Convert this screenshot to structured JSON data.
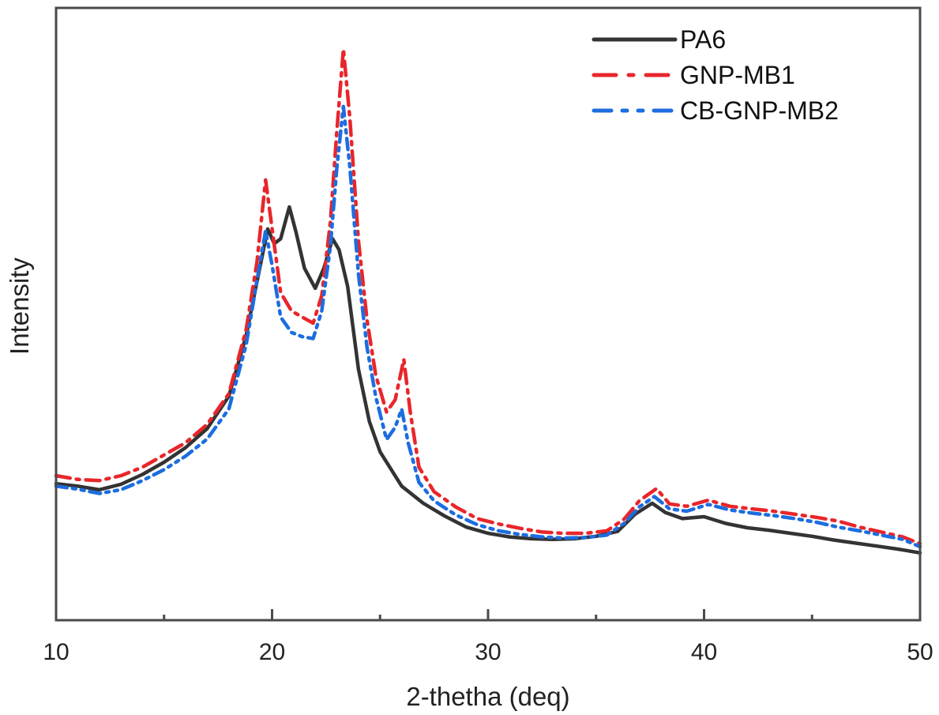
{
  "chart_data": {
    "type": "line",
    "title": "",
    "xlabel": "2-thetha (deq)",
    "ylabel": "Intensity",
    "xlim": [
      10,
      50
    ],
    "ylim": [
      0,
      100
    ],
    "x_ticks": [
      10,
      20,
      30,
      40,
      50
    ],
    "x_tick_labels": [
      "10",
      "20",
      "30",
      "40",
      "50"
    ],
    "x_minor_ticks": [
      15,
      25,
      35,
      45
    ],
    "y_ticks": [],
    "y_units": "arbitrary",
    "grid": false,
    "legend": {
      "placement": "top-right",
      "frame": false
    },
    "series": [
      {
        "name": "PA6",
        "color": "#333333",
        "style": "solid",
        "points": [
          [
            10,
            22.3
          ],
          [
            11,
            21.9
          ],
          [
            12,
            21.3
          ],
          [
            13,
            22.2
          ],
          [
            14,
            23.8
          ],
          [
            15,
            25.8
          ],
          [
            16,
            28.2
          ],
          [
            17,
            31.3
          ],
          [
            18,
            36.6
          ],
          [
            18.8,
            46.5
          ],
          [
            19.4,
            57.0
          ],
          [
            19.8,
            63.9
          ],
          [
            20.1,
            61.5
          ],
          [
            20.4,
            62.3
          ],
          [
            20.8,
            67.5
          ],
          [
            21.1,
            63.5
          ],
          [
            21.5,
            57.5
          ],
          [
            22.0,
            54.2
          ],
          [
            22.4,
            57.5
          ],
          [
            22.8,
            62.3
          ],
          [
            23.1,
            60.5
          ],
          [
            23.5,
            54.5
          ],
          [
            24.0,
            41.0
          ],
          [
            24.5,
            32.5
          ],
          [
            25.0,
            27.5
          ],
          [
            26.0,
            21.9
          ],
          [
            27.0,
            19.1
          ],
          [
            28.0,
            17.0
          ],
          [
            29.0,
            15.2
          ],
          [
            30.0,
            14.2
          ],
          [
            31.0,
            13.6
          ],
          [
            32.0,
            13.3
          ],
          [
            33.0,
            13.2
          ],
          [
            34.0,
            13.3
          ],
          [
            35.0,
            13.7
          ],
          [
            36.0,
            14.5
          ],
          [
            36.8,
            17.3
          ],
          [
            37.6,
            19.1
          ],
          [
            38.2,
            17.6
          ],
          [
            39.0,
            16.6
          ],
          [
            40.0,
            16.9
          ],
          [
            41.0,
            15.8
          ],
          [
            42.0,
            15.1
          ],
          [
            43.0,
            14.7
          ],
          [
            44.0,
            14.2
          ],
          [
            45.0,
            13.7
          ],
          [
            46.0,
            13.1
          ],
          [
            47.0,
            12.6
          ],
          [
            48.0,
            12.1
          ],
          [
            49.0,
            11.6
          ],
          [
            50.0,
            11.0
          ]
        ]
      },
      {
        "name": "GNP-MB1",
        "color": "#e8262b",
        "style": "dash-dot",
        "points": [
          [
            10,
            23.6
          ],
          [
            11,
            23.0
          ],
          [
            12,
            22.8
          ],
          [
            13,
            23.6
          ],
          [
            14,
            25.0
          ],
          [
            15,
            27.0
          ],
          [
            16,
            29.0
          ],
          [
            17,
            32.0
          ],
          [
            18,
            37.0
          ],
          [
            18.8,
            47.5
          ],
          [
            19.3,
            58.5
          ],
          [
            19.7,
            71.9
          ],
          [
            20.0,
            64.0
          ],
          [
            20.4,
            53.5
          ],
          [
            20.9,
            50.5
          ],
          [
            21.4,
            49.5
          ],
          [
            21.9,
            48.5
          ],
          [
            22.3,
            53.0
          ],
          [
            22.7,
            65.0
          ],
          [
            23.0,
            80.0
          ],
          [
            23.3,
            93.3
          ],
          [
            23.6,
            82.0
          ],
          [
            24.0,
            62.0
          ],
          [
            24.4,
            49.0
          ],
          [
            24.8,
            40.0
          ],
          [
            25.3,
            34.0
          ],
          [
            25.7,
            36.0
          ],
          [
            26.1,
            42.6
          ],
          [
            26.4,
            34.0
          ],
          [
            26.8,
            25.0
          ],
          [
            27.5,
            21.0
          ],
          [
            28.5,
            18.5
          ],
          [
            29.5,
            16.6
          ],
          [
            30.5,
            15.7
          ],
          [
            31.5,
            15.0
          ],
          [
            32.5,
            14.4
          ],
          [
            33.5,
            14.2
          ],
          [
            34.5,
            14.2
          ],
          [
            35.5,
            14.6
          ],
          [
            36.3,
            16.5
          ],
          [
            37.0,
            19.5
          ],
          [
            37.8,
            21.5
          ],
          [
            38.4,
            19.0
          ],
          [
            39.2,
            18.6
          ],
          [
            40.2,
            19.6
          ],
          [
            41.2,
            18.6
          ],
          [
            42.2,
            18.2
          ],
          [
            43.2,
            17.8
          ],
          [
            44.2,
            17.3
          ],
          [
            45.2,
            16.8
          ],
          [
            46.2,
            16.2
          ],
          [
            47.2,
            15.2
          ],
          [
            48.2,
            14.4
          ],
          [
            49.2,
            13.6
          ],
          [
            50.0,
            12.5
          ]
        ]
      },
      {
        "name": "CB-GNP-MB2",
        "color": "#1c6de0",
        "style": "dash-dot-dot",
        "points": [
          [
            10,
            21.9
          ],
          [
            11,
            21.4
          ],
          [
            12,
            20.7
          ],
          [
            13,
            21.3
          ],
          [
            14,
            22.8
          ],
          [
            15,
            24.6
          ],
          [
            16,
            26.8
          ],
          [
            17,
            29.6
          ],
          [
            18,
            34.5
          ],
          [
            18.8,
            45.0
          ],
          [
            19.3,
            55.5
          ],
          [
            19.7,
            63.6
          ],
          [
            20.0,
            58.0
          ],
          [
            20.4,
            49.5
          ],
          [
            20.9,
            47.0
          ],
          [
            21.4,
            46.3
          ],
          [
            21.9,
            46.0
          ],
          [
            22.3,
            50.5
          ],
          [
            22.7,
            61.0
          ],
          [
            23.0,
            74.0
          ],
          [
            23.3,
            83.9
          ],
          [
            23.6,
            74.0
          ],
          [
            24.0,
            56.5
          ],
          [
            24.4,
            44.5
          ],
          [
            24.8,
            36.5
          ],
          [
            25.3,
            29.5
          ],
          [
            25.7,
            31.5
          ],
          [
            26.0,
            34.5
          ],
          [
            26.3,
            29.0
          ],
          [
            26.8,
            22.5
          ],
          [
            27.5,
            19.5
          ],
          [
            28.5,
            17.2
          ],
          [
            29.5,
            15.6
          ],
          [
            30.5,
            14.6
          ],
          [
            31.5,
            14.0
          ],
          [
            32.5,
            13.6
          ],
          [
            33.5,
            13.4
          ],
          [
            34.5,
            13.5
          ],
          [
            35.5,
            13.9
          ],
          [
            36.3,
            15.8
          ],
          [
            37.0,
            18.5
          ],
          [
            37.7,
            20.2
          ],
          [
            38.4,
            18.2
          ],
          [
            39.2,
            17.8
          ],
          [
            40.2,
            18.9
          ],
          [
            41.2,
            18.0
          ],
          [
            42.2,
            17.5
          ],
          [
            43.2,
            17.1
          ],
          [
            44.2,
            16.6
          ],
          [
            45.2,
            16.0
          ],
          [
            46.2,
            15.2
          ],
          [
            47.2,
            14.6
          ],
          [
            48.2,
            13.9
          ],
          [
            49.2,
            13.2
          ],
          [
            50.0,
            12.0
          ]
        ]
      }
    ]
  }
}
